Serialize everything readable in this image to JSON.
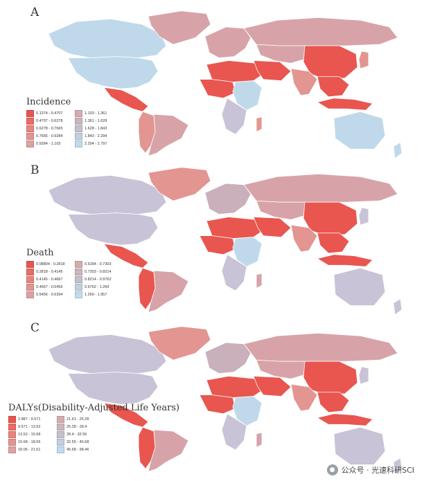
{
  "palette": {
    "red_dark": "#e8564f",
    "red_mid": "#ea756f",
    "red_light": "#e39591",
    "pink": "#d7a3a9",
    "mauve": "#c9b0bb",
    "lavender": "#c8c3d6",
    "light_blue": "#bfd9ea",
    "pale_blue": "#cfe4f0"
  },
  "panels": [
    {
      "letter": "A",
      "legend_title": "Incidence",
      "legend": [
        {
          "label": "0.1374 - 0.4707",
          "color": "#e8564f"
        },
        {
          "label": "0.4707 - 0.6278",
          "color": "#ea6c64"
        },
        {
          "label": "0.6278 - 0.7665",
          "color": "#eb847d"
        },
        {
          "label": "0.7665 - 0.9284",
          "color": "#e39591"
        },
        {
          "label": "0.9284 - 1.103",
          "color": "#dca3a2"
        },
        {
          "label": "1.103 - 1.361",
          "color": "#d5adae"
        },
        {
          "label": "1.361 - 1.628",
          "color": "#ccb6bb"
        },
        {
          "label": "1.628 - 1.843",
          "color": "#c5c0cb"
        },
        {
          "label": "1.843 - 2.294",
          "color": "#c4cfdd"
        },
        {
          "label": "2.294 - 2.797",
          "color": "#bfdcec"
        }
      ],
      "regions": {
        "north_america": "#bfd9ea",
        "canada": "#bfd9ea",
        "greenland": "#d7a3a9",
        "central_america": "#e8564f",
        "south_america": "#d7a3a9",
        "south_america_west": "#e39591",
        "europe": "#d7a3a9",
        "north_africa": "#e8564f",
        "west_africa": "#e8564f",
        "east_africa": "#bfd9ea",
        "south_africa": "#c8c3d6",
        "madagascar": "#e39591",
        "middle_east": "#e8564f",
        "russia": "#d7a3a9",
        "central_asia": "#d7a3a9",
        "china": "#e8564f",
        "india": "#e39591",
        "southeast_asia": "#e8564f",
        "indonesia": "#e8564f",
        "japan": "#e39591",
        "australia": "#bfd9ea",
        "new_zealand": "#bfd9ea"
      }
    },
    {
      "letter": "B",
      "legend_title": "Death",
      "legend": [
        {
          "label": "0.08804 - 0.2818",
          "color": "#e8564f"
        },
        {
          "label": "0.2818 - 0.4145",
          "color": "#ea6c64"
        },
        {
          "label": "0.4145 - 0.4667",
          "color": "#eb847d"
        },
        {
          "label": "0.4667 - 0.5456",
          "color": "#e39591"
        },
        {
          "label": "0.5456 - 0.6394",
          "color": "#dca3a2"
        },
        {
          "label": "0.6394 - 0.7303",
          "color": "#d5adae"
        },
        {
          "label": "0.7303 - 0.8214",
          "color": "#ccb6bb"
        },
        {
          "label": "0.8214 - 0.9762",
          "color": "#c5c0cb"
        },
        {
          "label": "0.9762 - 1.269",
          "color": "#c4cfdd"
        },
        {
          "label": "1.269 - 1.957",
          "color": "#bfdcec"
        }
      ],
      "regions": {
        "north_america": "#c8c3d6",
        "canada": "#c8c3d6",
        "greenland": "#e39591",
        "central_america": "#e8564f",
        "south_america": "#d7a3a9",
        "south_america_west": "#e8564f",
        "europe": "#c9b0bb",
        "north_africa": "#e8564f",
        "west_africa": "#e8564f",
        "east_africa": "#bfd9ea",
        "south_africa": "#c8c3d6",
        "madagascar": "#d7a3a9",
        "middle_east": "#e8564f",
        "russia": "#d7a3a9",
        "central_asia": "#d7a3a9",
        "china": "#e8564f",
        "india": "#e39591",
        "southeast_asia": "#e8564f",
        "indonesia": "#e8564f",
        "japan": "#c8c3d6",
        "australia": "#c8c3d6",
        "new_zealand": "#c8c3d6"
      }
    },
    {
      "letter": "C",
      "legend_title": "DALYs(Disability-Adjusted Life Years)",
      "legend": [
        {
          "label": "2.887 - 9.571",
          "color": "#e8564f"
        },
        {
          "label": "9.571 - 13.52",
          "color": "#ea6c64"
        },
        {
          "label": "13.52 - 15.68",
          "color": "#eb847d"
        },
        {
          "label": "15.68 - 18.06",
          "color": "#e39591"
        },
        {
          "label": "18.06 - 21.61",
          "color": "#dca3a2"
        },
        {
          "label": "21.61 - 25.28",
          "color": "#d5adae"
        },
        {
          "label": "25.28 - 28.4",
          "color": "#ccb6bb"
        },
        {
          "label": "28.4 - 32.55",
          "color": "#c5c0cb"
        },
        {
          "label": "32.55 - 45.68",
          "color": "#c4cfdd"
        },
        {
          "label": "45.68 - 98.46",
          "color": "#bfdcec"
        }
      ],
      "regions": {
        "north_america": "#c8c3d6",
        "canada": "#c8c3d6",
        "greenland": "#e39591",
        "central_america": "#e8564f",
        "south_america": "#d7a3a9",
        "south_america_west": "#e8564f",
        "europe": "#c9b0bb",
        "north_africa": "#e8564f",
        "west_africa": "#e8564f",
        "east_africa": "#bfd9ea",
        "south_africa": "#c8c3d6",
        "madagascar": "#d7a3a9",
        "middle_east": "#e8564f",
        "russia": "#d7a3a9",
        "central_asia": "#d7a3a9",
        "china": "#e8564f",
        "india": "#e39591",
        "southeast_asia": "#e8564f",
        "indonesia": "#e8564f",
        "japan": "#c8c3d6",
        "australia": "#c8c3d6",
        "new_zealand": "#c8c3d6"
      }
    }
  ],
  "watermark": {
    "icon": "wechat-icon",
    "text": "公众号 · 光速科研SCI"
  }
}
